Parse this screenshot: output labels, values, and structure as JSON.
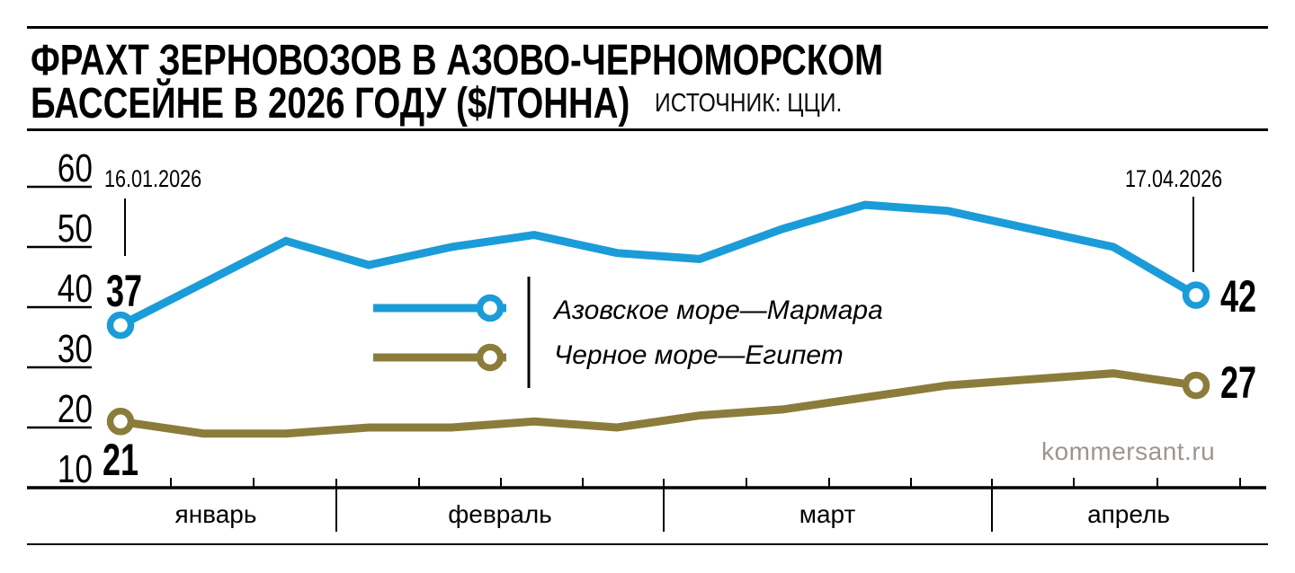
{
  "header": {
    "title_line1": "ФРАХТ ЗЕРНОВОЗОВ В АЗОВО-ЧЕРНОМОРСКОМ",
    "title_line2": "БАССЕЙНЕ В 2026 ГОДУ ($/ТОННА)",
    "source": "ИСТОЧНИК: ЦЦИ."
  },
  "watermark": "kommersant.ru",
  "colors": {
    "blue": "#1B9CD8",
    "olive": "#8B7C3B",
    "axis": "#000000",
    "watermark_gray": "#9C9590"
  },
  "chart_data": {
    "type": "line",
    "title": "Фрахт зерновозов в Азово-Черноморском бассейне в 2026 году ($/тонна)",
    "interval": "weekly",
    "x_axis": {
      "months": [
        "январь",
        "февраль",
        "март",
        "апрель"
      ]
    },
    "y_axis": {
      "ticks": [
        60,
        50,
        40,
        30,
        20,
        10
      ],
      "ylim": [
        10,
        60
      ]
    },
    "annotations": {
      "start_date": "16.01.2026",
      "end_date": "17.04.2026"
    },
    "series": [
      {
        "name": "Азовское море—Мармара",
        "color": "#1B9CD8",
        "values": [
          37,
          44,
          51,
          47,
          50,
          52,
          49,
          48,
          53,
          57,
          56,
          53,
          50,
          42
        ],
        "start_label": "37",
        "end_label": "42"
      },
      {
        "name": "Черное море—Египет",
        "color": "#8B7C3B",
        "values": [
          21,
          19,
          19,
          20,
          20,
          21,
          20,
          22,
          23,
          25,
          27,
          28,
          29,
          27
        ],
        "start_label": "21",
        "end_label": "27"
      }
    ],
    "legend_position": "center",
    "grid": false
  }
}
